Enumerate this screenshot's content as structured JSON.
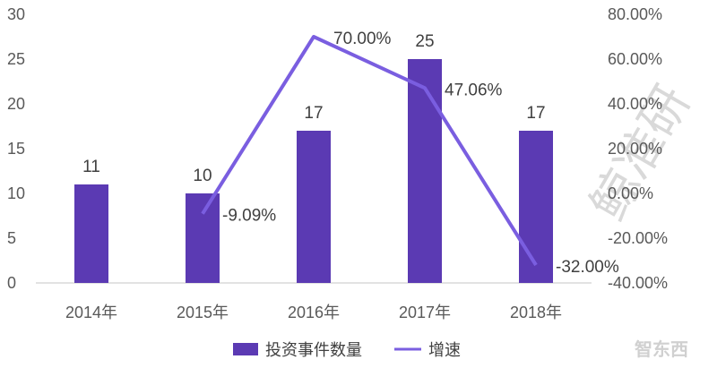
{
  "chart_data": {
    "type": "bar",
    "categories": [
      "2014年",
      "2015年",
      "2016年",
      "2017年",
      "2018年"
    ],
    "series": [
      {
        "name": "投资事件数量",
        "type": "bar",
        "axis": "left",
        "values": [
          11,
          10,
          17,
          25,
          17
        ],
        "labels": [
          "11",
          "10",
          "17",
          "25",
          "17"
        ],
        "color": "#5b3ab3"
      },
      {
        "name": "增速",
        "type": "line",
        "axis": "right",
        "values": [
          null,
          -9.09,
          70.0,
          47.06,
          -32.0
        ],
        "labels": [
          "",
          "-9.09%",
          "70.00%",
          "47.06%",
          "-32.00%"
        ],
        "color": "#7a5ee0"
      }
    ],
    "y_left": {
      "min": 0,
      "max": 30,
      "ticks": [
        "0",
        "5",
        "10",
        "15",
        "20",
        "25",
        "30"
      ]
    },
    "y_right": {
      "min": -40,
      "max": 80,
      "ticks": [
        "-40.00%",
        "-20.00%",
        "0.00%",
        "20.00%",
        "40.00%",
        "60.00%",
        "80.00%"
      ]
    },
    "grid": false,
    "legend_position": "bottom",
    "title": "",
    "xlabel": "",
    "ylabel": ""
  },
  "watermark": {
    "text": "智东西",
    "background_text": "鲸准研"
  }
}
